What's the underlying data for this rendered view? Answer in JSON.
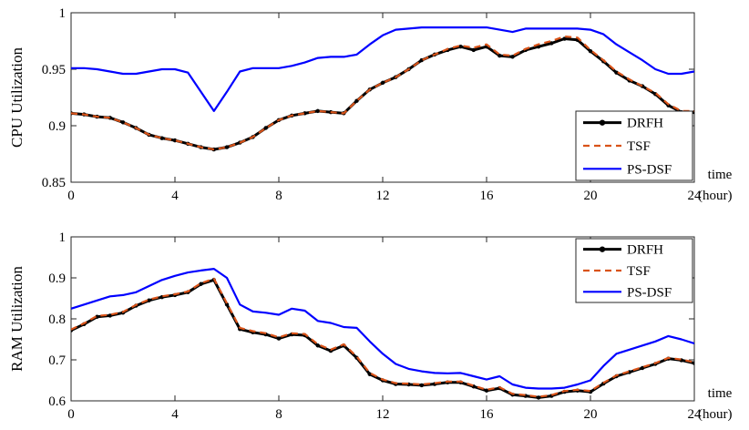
{
  "chart_data": [
    {
      "type": "line",
      "ylabel": "CPU Utilization",
      "xlabel_line1": "time",
      "xlabel_line2": "(hour)",
      "xlim": [
        0,
        24
      ],
      "ylim": [
        0.85,
        1
      ],
      "xticks": [
        0,
        4,
        8,
        12,
        16,
        20,
        24
      ],
      "yticks": [
        0.85,
        0.9,
        0.95,
        1
      ],
      "ytick_labels": [
        "0.85",
        "0.9",
        "0.95",
        "1"
      ],
      "grid": false,
      "legend_position": "bottom-right",
      "x": [
        0,
        0.5,
        1,
        1.5,
        2,
        2.5,
        3,
        3.5,
        4,
        4.5,
        5,
        5.5,
        6,
        6.5,
        7,
        7.5,
        8,
        8.5,
        9,
        9.5,
        10,
        10.5,
        11,
        11.5,
        12,
        12.5,
        13,
        13.5,
        14,
        14.5,
        15,
        15.5,
        16,
        16.5,
        17,
        17.5,
        18,
        18.5,
        19,
        19.5,
        20,
        20.5,
        21,
        21.5,
        22,
        22.5,
        23,
        23.5,
        24
      ],
      "series": [
        {
          "name": "DRFH",
          "color": "#000000",
          "style": "solid-dots",
          "values": [
            0.911,
            0.91,
            0.908,
            0.907,
            0.903,
            0.898,
            0.892,
            0.889,
            0.887,
            0.884,
            0.881,
            0.879,
            0.881,
            0.885,
            0.89,
            0.898,
            0.905,
            0.909,
            0.911,
            0.913,
            0.912,
            0.911,
            0.922,
            0.932,
            0.938,
            0.943,
            0.95,
            0.958,
            0.963,
            0.967,
            0.97,
            0.967,
            0.97,
            0.962,
            0.961,
            0.967,
            0.97,
            0.973,
            0.977,
            0.976,
            0.966,
            0.957,
            0.947,
            0.94,
            0.935,
            0.928,
            0.918,
            0.912,
            0.912
          ]
        },
        {
          "name": "TSF",
          "color": "#d95319",
          "style": "dashed",
          "values": [
            0.911,
            0.91,
            0.908,
            0.907,
            0.903,
            0.898,
            0.892,
            0.889,
            0.887,
            0.884,
            0.881,
            0.879,
            0.881,
            0.885,
            0.89,
            0.898,
            0.905,
            0.909,
            0.911,
            0.913,
            0.912,
            0.911,
            0.922,
            0.932,
            0.938,
            0.943,
            0.95,
            0.958,
            0.963,
            0.968,
            0.971,
            0.969,
            0.972,
            0.963,
            0.962,
            0.968,
            0.972,
            0.975,
            0.979,
            0.978,
            0.967,
            0.958,
            0.948,
            0.941,
            0.935,
            0.929,
            0.919,
            0.913,
            0.913
          ]
        },
        {
          "name": "PS-DSF",
          "color": "#0000ff",
          "style": "solid",
          "values": [
            0.951,
            0.951,
            0.95,
            0.948,
            0.946,
            0.946,
            0.948,
            0.95,
            0.95,
            0.947,
            0.93,
            0.913,
            0.93,
            0.948,
            0.951,
            0.951,
            0.951,
            0.953,
            0.956,
            0.96,
            0.961,
            0.961,
            0.963,
            0.972,
            0.98,
            0.985,
            0.986,
            0.987,
            0.987,
            0.987,
            0.987,
            0.987,
            0.987,
            0.985,
            0.983,
            0.986,
            0.986,
            0.986,
            0.986,
            0.986,
            0.985,
            0.981,
            0.972,
            0.965,
            0.958,
            0.95,
            0.946,
            0.946,
            0.948
          ]
        }
      ]
    },
    {
      "type": "line",
      "ylabel": "RAM Utilization",
      "xlabel_line1": "time",
      "xlabel_line2": "(hour)",
      "xlim": [
        0,
        24
      ],
      "ylim": [
        0.6,
        1
      ],
      "xticks": [
        0,
        4,
        8,
        12,
        16,
        20,
        24
      ],
      "yticks": [
        0.6,
        0.7,
        0.8,
        0.9,
        1
      ],
      "ytick_labels": [
        "0.6",
        "0.7",
        "0.8",
        "0.9",
        "1"
      ],
      "grid": false,
      "legend_position": "top-right",
      "x": [
        0,
        0.5,
        1,
        1.5,
        2,
        2.5,
        3,
        3.5,
        4,
        4.5,
        5,
        5.5,
        6,
        6.5,
        7,
        7.5,
        8,
        8.5,
        9,
        9.5,
        10,
        10.5,
        11,
        11.5,
        12,
        12.5,
        13,
        13.5,
        14,
        14.5,
        15,
        15.5,
        16,
        16.5,
        17,
        17.5,
        18,
        18.5,
        19,
        19.5,
        20,
        20.5,
        21,
        21.5,
        22,
        22.5,
        23,
        23.5,
        24
      ],
      "series": [
        {
          "name": "DRFH",
          "color": "#000000",
          "style": "solid-dots",
          "values": [
            0.772,
            0.787,
            0.805,
            0.808,
            0.815,
            0.832,
            0.845,
            0.853,
            0.858,
            0.865,
            0.885,
            0.895,
            0.835,
            0.775,
            0.767,
            0.762,
            0.752,
            0.762,
            0.76,
            0.735,
            0.722,
            0.735,
            0.705,
            0.665,
            0.65,
            0.641,
            0.64,
            0.638,
            0.641,
            0.645,
            0.645,
            0.635,
            0.625,
            0.631,
            0.615,
            0.612,
            0.608,
            0.612,
            0.622,
            0.625,
            0.622,
            0.642,
            0.66,
            0.67,
            0.68,
            0.69,
            0.703,
            0.699,
            0.692
          ]
        },
        {
          "name": "TSF",
          "color": "#d95319",
          "style": "dashed",
          "values": [
            0.774,
            0.789,
            0.807,
            0.81,
            0.817,
            0.834,
            0.847,
            0.855,
            0.86,
            0.867,
            0.887,
            0.898,
            0.838,
            0.778,
            0.77,
            0.765,
            0.755,
            0.765,
            0.763,
            0.738,
            0.725,
            0.738,
            0.708,
            0.668,
            0.652,
            0.643,
            0.642,
            0.64,
            0.643,
            0.647,
            0.647,
            0.637,
            0.627,
            0.633,
            0.617,
            0.614,
            0.61,
            0.614,
            0.624,
            0.627,
            0.624,
            0.644,
            0.662,
            0.672,
            0.682,
            0.692,
            0.705,
            0.701,
            0.694
          ]
        },
        {
          "name": "PS-DSF",
          "color": "#0000ff",
          "style": "solid",
          "values": [
            0.825,
            0.835,
            0.845,
            0.855,
            0.858,
            0.865,
            0.88,
            0.895,
            0.905,
            0.913,
            0.918,
            0.922,
            0.9,
            0.835,
            0.818,
            0.815,
            0.81,
            0.825,
            0.82,
            0.795,
            0.79,
            0.78,
            0.778,
            0.745,
            0.715,
            0.69,
            0.678,
            0.672,
            0.668,
            0.667,
            0.668,
            0.66,
            0.652,
            0.66,
            0.64,
            0.632,
            0.63,
            0.63,
            0.632,
            0.64,
            0.65,
            0.685,
            0.715,
            0.725,
            0.735,
            0.745,
            0.758,
            0.75,
            0.74
          ]
        }
      ]
    }
  ]
}
